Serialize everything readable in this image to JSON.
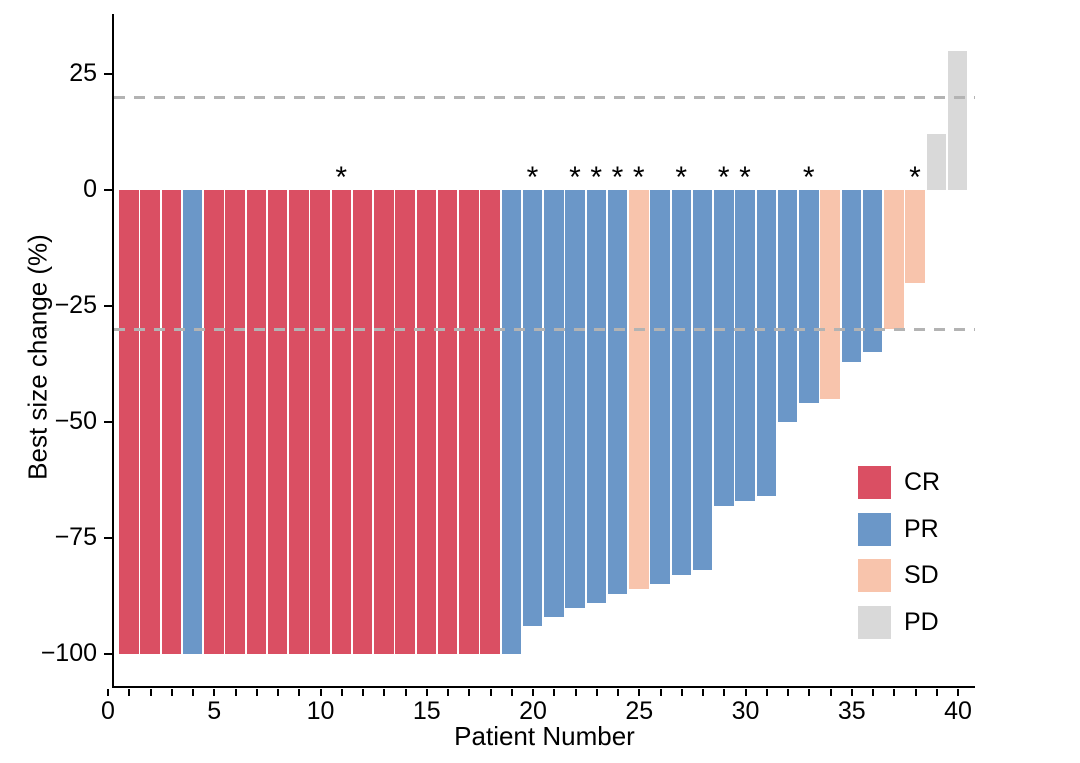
{
  "chart_data": {
    "type": "bar",
    "variant": "waterfall",
    "title": "",
    "xlabel": "Patient Number",
    "ylabel": "Best size change (%)",
    "x_axis": {
      "min": 0,
      "max": 41,
      "minor_tick_every": 1,
      "labeled_ticks": [
        {
          "value": 0,
          "label": "0"
        },
        {
          "value": 5,
          "label": "5"
        },
        {
          "value": 10,
          "label": "10"
        },
        {
          "value": 15,
          "label": "15"
        },
        {
          "value": 20,
          "label": "20"
        },
        {
          "value": 25,
          "label": "25"
        },
        {
          "value": 30,
          "label": "30"
        },
        {
          "value": 35,
          "label": "35"
        },
        {
          "value": 40,
          "label": "40"
        }
      ]
    },
    "y_axis": {
      "min": -107,
      "max": 38,
      "ticks": [
        {
          "value": 25,
          "label": "25"
        },
        {
          "value": 0,
          "label": "0"
        },
        {
          "value": -25,
          "label": "−25"
        },
        {
          "value": -50,
          "label": "−50"
        },
        {
          "value": -75,
          "label": "−75"
        },
        {
          "value": -100,
          "label": "−100"
        }
      ]
    },
    "reference_lines": [
      {
        "y": 20,
        "style": "dashed",
        "color": "#b3b3b3"
      },
      {
        "y": -30,
        "style": "dashed",
        "color": "#b3b3b3"
      }
    ],
    "annotation_symbol": "*",
    "legend": {
      "position": "right-center",
      "entries": [
        {
          "label": "CR",
          "color": "#da4f63"
        },
        {
          "label": "PR",
          "color": "#6b97c8"
        },
        {
          "label": "SD",
          "color": "#f8c4ac"
        },
        {
          "label": "PD",
          "color": "#d9d9d9"
        }
      ]
    },
    "bars": [
      {
        "patient": 1,
        "value": -100,
        "response": "CR",
        "star": false
      },
      {
        "patient": 2,
        "value": -100,
        "response": "CR",
        "star": false
      },
      {
        "patient": 3,
        "value": -100,
        "response": "CR",
        "star": false
      },
      {
        "patient": 4,
        "value": -100,
        "response": "PR",
        "star": false
      },
      {
        "patient": 5,
        "value": -100,
        "response": "CR",
        "star": false
      },
      {
        "patient": 6,
        "value": -100,
        "response": "CR",
        "star": false
      },
      {
        "patient": 7,
        "value": -100,
        "response": "CR",
        "star": false
      },
      {
        "patient": 8,
        "value": -100,
        "response": "CR",
        "star": false
      },
      {
        "patient": 9,
        "value": -100,
        "response": "CR",
        "star": false
      },
      {
        "patient": 10,
        "value": -100,
        "response": "CR",
        "star": false
      },
      {
        "patient": 11,
        "value": -100,
        "response": "CR",
        "star": true
      },
      {
        "patient": 12,
        "value": -100,
        "response": "CR",
        "star": false
      },
      {
        "patient": 13,
        "value": -100,
        "response": "CR",
        "star": false
      },
      {
        "patient": 14,
        "value": -100,
        "response": "CR",
        "star": false
      },
      {
        "patient": 15,
        "value": -100,
        "response": "CR",
        "star": false
      },
      {
        "patient": 16,
        "value": -100,
        "response": "CR",
        "star": false
      },
      {
        "patient": 17,
        "value": -100,
        "response": "CR",
        "star": false
      },
      {
        "patient": 18,
        "value": -100,
        "response": "CR",
        "star": false
      },
      {
        "patient": 19,
        "value": -100,
        "response": "PR",
        "star": false
      },
      {
        "patient": 20,
        "value": -94,
        "response": "PR",
        "star": true
      },
      {
        "patient": 21,
        "value": -92,
        "response": "PR",
        "star": false
      },
      {
        "patient": 22,
        "value": -90,
        "response": "PR",
        "star": true
      },
      {
        "patient": 23,
        "value": -89,
        "response": "PR",
        "star": true
      },
      {
        "patient": 24,
        "value": -87,
        "response": "PR",
        "star": true
      },
      {
        "patient": 25,
        "value": -86,
        "response": "SD",
        "star": true
      },
      {
        "patient": 26,
        "value": -85,
        "response": "PR",
        "star": false
      },
      {
        "patient": 27,
        "value": -83,
        "response": "PR",
        "star": true
      },
      {
        "patient": 28,
        "value": -82,
        "response": "PR",
        "star": false
      },
      {
        "patient": 29,
        "value": -68,
        "response": "PR",
        "star": true
      },
      {
        "patient": 30,
        "value": -67,
        "response": "PR",
        "star": true
      },
      {
        "patient": 31,
        "value": -66,
        "response": "PR",
        "star": false
      },
      {
        "patient": 32,
        "value": -50,
        "response": "PR",
        "star": false
      },
      {
        "patient": 33,
        "value": -46,
        "response": "PR",
        "star": true
      },
      {
        "patient": 34,
        "value": -45,
        "response": "SD",
        "star": false
      },
      {
        "patient": 35,
        "value": -37,
        "response": "PR",
        "star": false
      },
      {
        "patient": 36,
        "value": -35,
        "response": "PR",
        "star": false
      },
      {
        "patient": 37,
        "value": -30,
        "response": "SD",
        "star": false
      },
      {
        "patient": 38,
        "value": -20,
        "response": "SD",
        "star": true
      },
      {
        "patient": 39,
        "value": 12,
        "response": "PD",
        "star": false
      },
      {
        "patient": 40,
        "value": 30,
        "response": "PD",
        "star": false
      }
    ]
  }
}
